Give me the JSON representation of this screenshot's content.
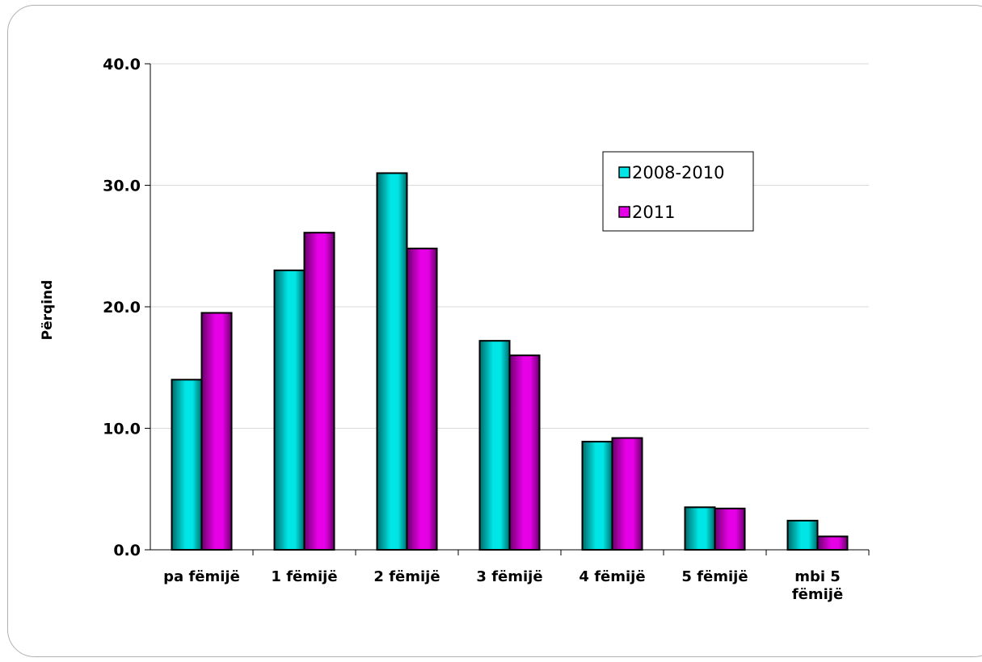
{
  "chart_data": {
    "type": "bar",
    "title": "",
    "xlabel": "",
    "ylabel": "Përqind",
    "ylim": [
      0,
      40
    ],
    "yticks": [
      "0.0",
      "10.0",
      "20.0",
      "30.0",
      "40.0"
    ],
    "grid": true,
    "legend_position": "top-right",
    "categories": [
      [
        "pa fëmijë"
      ],
      [
        "1  fëmijë"
      ],
      [
        "2 fëmijë"
      ],
      [
        "3 fëmijë"
      ],
      [
        "4 fëmijë"
      ],
      [
        "5 fëmijë"
      ],
      [
        "mbi 5",
        "fëmijë"
      ]
    ],
    "series": [
      {
        "name": "2008-2010",
        "color": "#00e5e5",
        "values": [
          14.0,
          23.0,
          31.0,
          17.2,
          8.9,
          3.5,
          2.4
        ]
      },
      {
        "name": "2011",
        "color": "#e600e6",
        "values": [
          19.5,
          26.1,
          24.8,
          16.0,
          9.2,
          3.4,
          1.1
        ]
      }
    ]
  }
}
